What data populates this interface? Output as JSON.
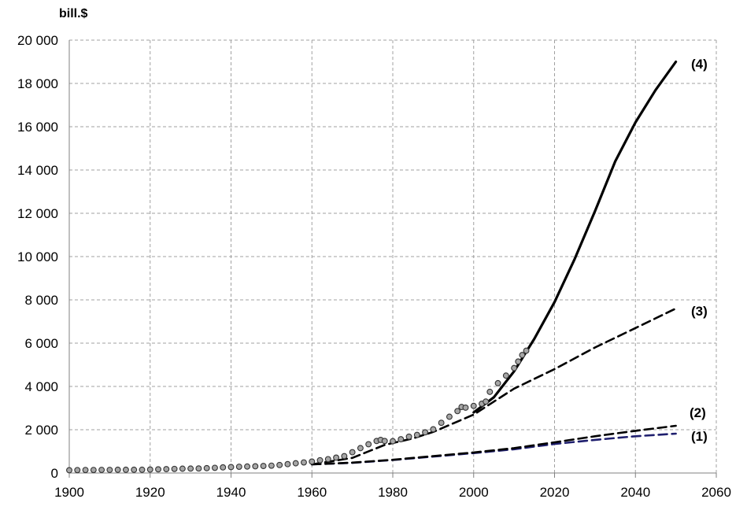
{
  "chart_data": {
    "type": "line",
    "ylabel": "bill.$",
    "xlim": [
      1900,
      2060
    ],
    "ylim": [
      0,
      20000
    ],
    "x_ticks": [
      1900,
      1920,
      1940,
      1960,
      1980,
      2000,
      2020,
      2040,
      2060
    ],
    "y_ticks": [
      0,
      2000,
      4000,
      6000,
      8000,
      10000,
      12000,
      14000,
      16000,
      18000,
      20000
    ],
    "x_tick_labels": [
      "1900",
      "1920",
      "1940",
      "1960",
      "1980",
      "2000",
      "2020",
      "2040",
      "2060"
    ],
    "y_tick_labels": [
      "0",
      "2 000",
      "4 000",
      "6 000",
      "8 000",
      "10 000",
      "12 000",
      "14 000",
      "16 000",
      "18 000",
      "20 000"
    ],
    "grid": true,
    "series": [
      {
        "label": "(1)",
        "style": "dashed",
        "color": "#1f1f6e",
        "x": [
          1960,
          1970,
          1980,
          1990,
          2000,
          2010,
          2020,
          2030,
          2040,
          2050
        ],
        "y": [
          400,
          470,
          600,
          760,
          920,
          1100,
          1340,
          1530,
          1700,
          1820
        ]
      },
      {
        "label": "(2)",
        "style": "dashed",
        "color": "#000000",
        "x": [
          1960,
          1970,
          1980,
          1990,
          2000,
          2010,
          2020,
          2030,
          2040,
          2050
        ],
        "y": [
          400,
          480,
          610,
          780,
          950,
          1150,
          1420,
          1700,
          1950,
          2180
        ]
      },
      {
        "label": "(3)",
        "style": "dashed",
        "color": "#000000",
        "x": [
          1960,
          1970,
          1978,
          1985,
          1990,
          1995,
          2000,
          2005,
          2010,
          2020,
          2030,
          2040,
          2050
        ],
        "y": [
          400,
          700,
          1300,
          1600,
          1900,
          2300,
          2700,
          3300,
          3900,
          4800,
          5800,
          6700,
          7600
        ]
      },
      {
        "label": "(4)",
        "style": "solid",
        "color": "#000000",
        "x": [
          2000,
          2005,
          2010,
          2015,
          2020,
          2025,
          2030,
          2035,
          2040,
          2045,
          2050
        ],
        "y": [
          2800,
          3500,
          4700,
          6200,
          7900,
          9900,
          12100,
          14400,
          16200,
          17700,
          19000
        ]
      },
      {
        "label": "",
        "style": "markers",
        "color": "#a6a6a6",
        "x": [
          1900,
          1902,
          1904,
          1906,
          1908,
          1910,
          1912,
          1914,
          1916,
          1918,
          1920,
          1922,
          1924,
          1926,
          1928,
          1930,
          1932,
          1934,
          1936,
          1938,
          1940,
          1942,
          1944,
          1946,
          1948,
          1950,
          1952,
          1954,
          1956,
          1958,
          1960,
          1962,
          1964,
          1966,
          1968,
          1970,
          1972,
          1974,
          1976,
          1977,
          1978,
          1980,
          1982,
          1984,
          1986,
          1988,
          1990,
          1992,
          1994,
          1996,
          1997,
          1998,
          2000,
          2002,
          2003,
          2004,
          2006,
          2008,
          2010,
          2011,
          2012,
          2013
        ],
        "y": [
          130,
          135,
          140,
          140,
          145,
          145,
          150,
          150,
          150,
          150,
          160,
          170,
          180,
          190,
          200,
          205,
          210,
          225,
          240,
          260,
          275,
          290,
          300,
          310,
          325,
          340,
          370,
          410,
          450,
          490,
          530,
          590,
          640,
          710,
          780,
          960,
          1150,
          1330,
          1480,
          1530,
          1480,
          1470,
          1560,
          1680,
          1760,
          1880,
          2020,
          2320,
          2600,
          2860,
          3050,
          3020,
          3100,
          3200,
          3300,
          3750,
          4150,
          4500,
          4850,
          5150,
          5450,
          5650
        ]
      }
    ]
  }
}
